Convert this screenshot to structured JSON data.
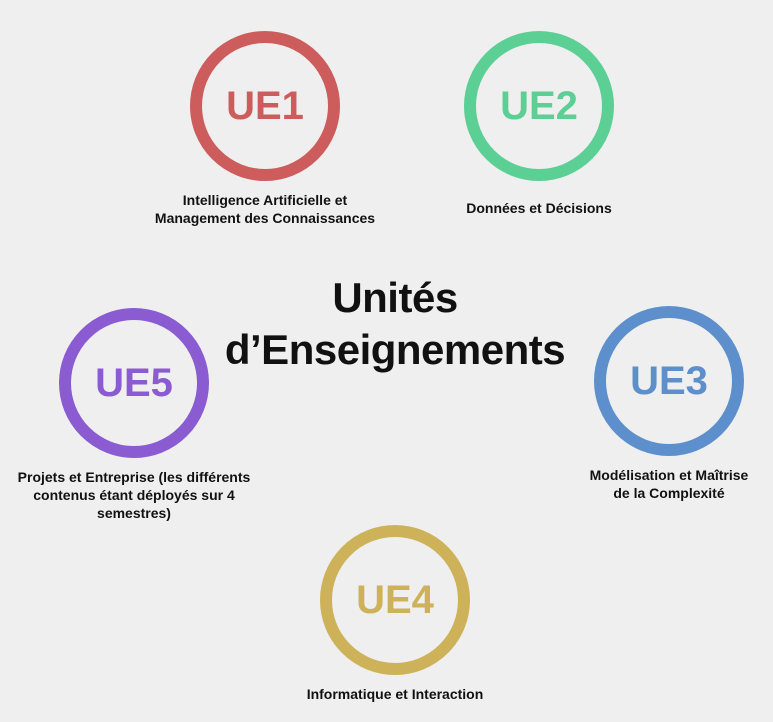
{
  "title": {
    "line1": "Unités",
    "line2": "d’Enseignements"
  },
  "units": [
    {
      "id": "ue1",
      "label": "UE1",
      "color": "#cd5c5c",
      "caption_lines": [
        "Intelligence Artificielle et",
        "Management des Connaissances"
      ]
    },
    {
      "id": "ue2",
      "label": "UE2",
      "color": "#5ccf94",
      "caption_lines": [
        "Données et Décisions"
      ]
    },
    {
      "id": "ue3",
      "label": "UE3",
      "color": "#5d8fcc",
      "caption_lines": [
        "Modélisation et Maîtrise",
        "de la Complexité"
      ]
    },
    {
      "id": "ue4",
      "label": "UE4",
      "color": "#cdb25a",
      "caption_lines": [
        "Informatique et Interaction"
      ]
    },
    {
      "id": "ue5",
      "label": "UE5",
      "color": "#8a5bd1",
      "caption_lines": [
        "Projets et Entreprise (les différents",
        "contenus étant déployés sur 4",
        "semestres)"
      ]
    }
  ]
}
